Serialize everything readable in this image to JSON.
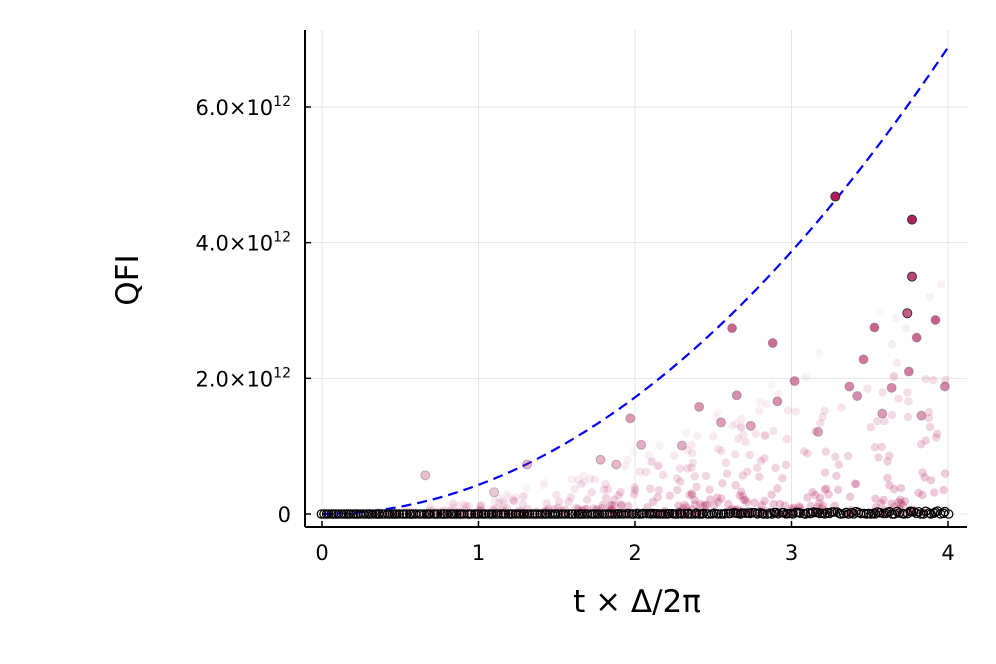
{
  "chart_data": {
    "type": "scatter",
    "title": "",
    "xlabel": "t × Δ/2π",
    "ylabel": "QFI",
    "xlim": [
      -0.1,
      4.12
    ],
    "ylim": [
      -200000000000.0,
      7100000000000.0
    ],
    "xticks": [
      0,
      1,
      2,
      3,
      4
    ],
    "xtick_labels": [
      "0",
      "1",
      "2",
      "3",
      "4"
    ],
    "yticks": [
      0,
      2000000000000.0,
      4000000000000.0,
      6000000000000.0
    ],
    "ytick_labels": [
      {
        "mantissa": "0",
        "exponent": ""
      },
      {
        "mantissa": "2.0×10",
        "exponent": "12"
      },
      {
        "mantissa": "4.0×10",
        "exponent": "12"
      },
      {
        "mantissa": "6.0×10",
        "exponent": "12"
      }
    ],
    "grid": true,
    "legend": "none",
    "colors": {
      "curve": "#0000ff",
      "points_fill": "#b0185a",
      "baseline_stroke": "#000000",
      "grid": "#e4e4e4",
      "axis": "#000000"
    },
    "series": [
      {
        "kind": "dashed-curve",
        "formula": "4.3e11 * x^2",
        "x_range": [
          0,
          4
        ]
      },
      {
        "kind": "highlighted-points",
        "points": [
          [
            0.66,
            570000000000.0
          ],
          [
            1.31,
            730000000000.0
          ],
          [
            1.97,
            1410000000000.0
          ],
          [
            2.62,
            2740000000000.0
          ],
          [
            2.88,
            2520000000000.0
          ],
          [
            3.28,
            4680000000000.0
          ],
          [
            3.77,
            4340000000000.0
          ],
          [
            3.77,
            3500000000000.0
          ],
          [
            1.1,
            320000000000.0
          ],
          [
            2.41,
            1580000000000.0
          ],
          [
            2.65,
            1750000000000.0
          ],
          [
            3.02,
            1960000000000.0
          ],
          [
            3.53,
            2750000000000.0
          ],
          [
            3.74,
            2960000000000.0
          ],
          [
            3.8,
            2600000000000.0
          ],
          [
            3.92,
            2860000000000.0
          ],
          [
            3.46,
            2280000000000.0
          ],
          [
            3.64,
            1860000000000.0
          ],
          [
            3.75,
            2100000000000.0
          ],
          [
            3.98,
            1880000000000.0
          ],
          [
            2.91,
            1660000000000.0
          ],
          [
            3.37,
            1880000000000.0
          ],
          [
            3.42,
            1740000000000.0
          ],
          [
            3.58,
            1480000000000.0
          ],
          [
            1.78,
            800000000000.0
          ],
          [
            1.88,
            730000000000.0
          ],
          [
            2.04,
            1020000000000.0
          ],
          [
            2.3,
            1010000000000.0
          ],
          [
            2.55,
            1350000000000.0
          ],
          [
            2.74,
            1300000000000.0
          ],
          [
            3.17,
            1210000000000.0
          ],
          [
            3.83,
            1450000000000.0
          ]
        ]
      },
      {
        "kind": "faint-cloud",
        "count": 520,
        "description_range_x": [
          0,
          4
        ]
      },
      {
        "kind": "baseline-open-circles",
        "count": 260,
        "approx_value": 0
      }
    ]
  }
}
